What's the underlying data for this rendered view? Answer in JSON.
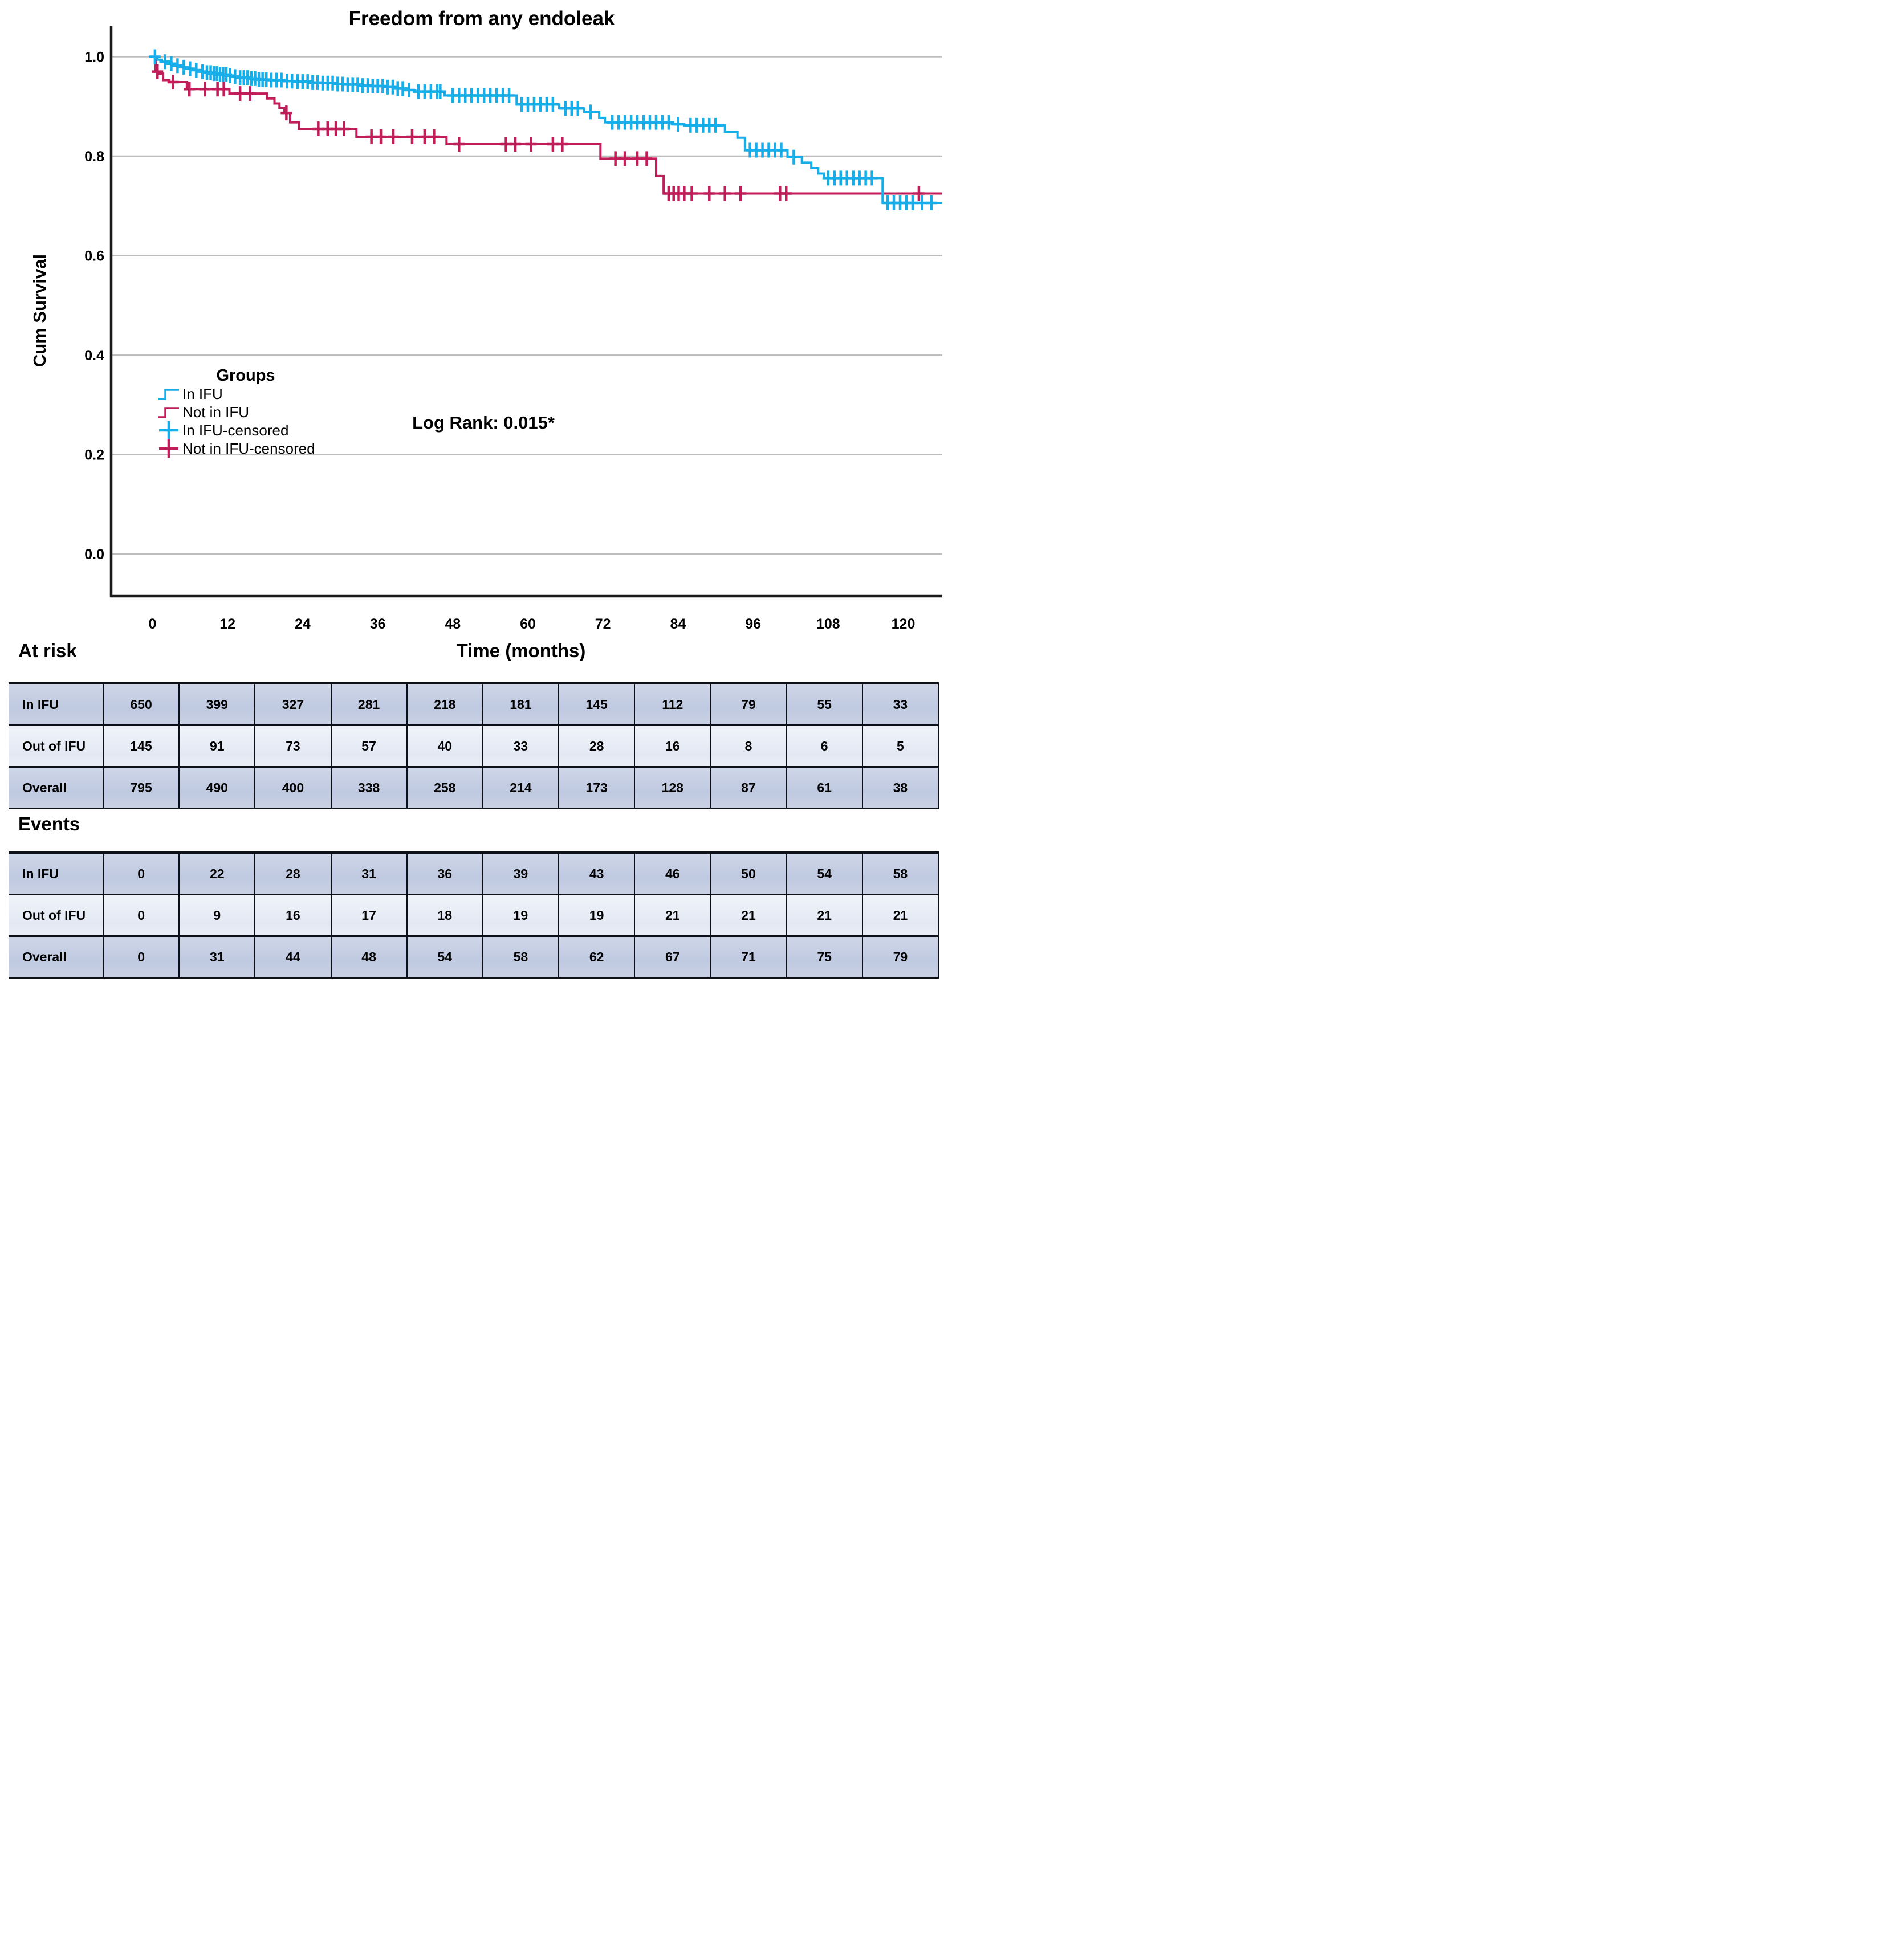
{
  "title": "Freedom from any endoleak",
  "y_axis": {
    "label": "Cum Survival",
    "ticks": [
      "1.0",
      "0.8",
      "0.6",
      "0.4",
      "0.2",
      "0.0"
    ]
  },
  "x_axis": {
    "label": "Time (months)",
    "ticks": [
      "0",
      "12",
      "24",
      "36",
      "48",
      "60",
      "72",
      "84",
      "96",
      "108",
      "120"
    ]
  },
  "annotation": "Log Rank: 0.015*",
  "legend": {
    "title": "Groups",
    "items": [
      {
        "label": "In IFU",
        "color": "#17ade8",
        "marker": "step-line"
      },
      {
        "label": "Not in IFU",
        "color": "#c01d59",
        "marker": "step-line"
      },
      {
        "label": "In IFU-censored",
        "color": "#17ade8",
        "marker": "plus"
      },
      {
        "label": "Not in IFU-censored",
        "color": "#c01d59",
        "marker": "plus"
      }
    ]
  },
  "colors": {
    "in_ifu": "#17ade8",
    "not_in_ifu": "#c01d59",
    "gridline": "#bdbdbd",
    "axis": "#1a1a1a",
    "table_row_dark": "#c5cee3",
    "table_row_light": "#e9edf6"
  },
  "chart_data": {
    "type": "line",
    "subtype": "kaplan-meier-step",
    "title": "Freedom from any endoleak",
    "xlabel": "Time (months)",
    "ylabel": "Cum Survival",
    "xlim": [
      -6.6,
      126.2
    ],
    "ylim": [
      0.0,
      1.05
    ],
    "x_ticks": [
      0,
      12,
      24,
      36,
      48,
      60,
      72,
      84,
      96,
      108,
      120
    ],
    "y_ticks": [
      1.0,
      0.8,
      0.6,
      0.4,
      0.2,
      0.0
    ],
    "grid": "horizontal",
    "legend_position": "inside-left-middle",
    "annotation": "Log Rank: 0.015*",
    "series": [
      {
        "name": "Not in IFU",
        "color": "#c01d59",
        "end_x": 126.2,
        "steps": [
          [
            0,
            1.0
          ],
          [
            0.5,
            0.97
          ],
          [
            0.9,
            0.966
          ],
          [
            1.7,
            0.953
          ],
          [
            2.7,
            0.949
          ],
          [
            5.5,
            0.935
          ],
          [
            12.3,
            0.926
          ],
          [
            18.3,
            0.916
          ],
          [
            19.5,
            0.906
          ],
          [
            20.3,
            0.897
          ],
          [
            21.1,
            0.887
          ],
          [
            22,
            0.868
          ],
          [
            23.4,
            0.855
          ],
          [
            32.6,
            0.839
          ],
          [
            47,
            0.824
          ],
          [
            71.6,
            0.795
          ],
          [
            80.5,
            0.76
          ],
          [
            81.7,
            0.725
          ]
        ],
        "censored": [
          0.8,
          3.3,
          5.9,
          8.4,
          10.4,
          11.4,
          14,
          15.6,
          21.4,
          26.5,
          28,
          29.3,
          30.6,
          35,
          36.5,
          38.5,
          41.5,
          43.5,
          45,
          49,
          56.5,
          58,
          60.5,
          64,
          65.5,
          74,
          75.5,
          77.5,
          79,
          82.5,
          83.3,
          84.1,
          85,
          86.2,
          89,
          91.5,
          94,
          100.3,
          101.3,
          122.5
        ]
      },
      {
        "name": "In IFU",
        "color": "#17ade8",
        "end_x": 126.2,
        "steps": [
          [
            0,
            1.0
          ],
          [
            0.8,
            0.994
          ],
          [
            1.5,
            0.99
          ],
          [
            2.5,
            0.986
          ],
          [
            3.5,
            0.982
          ],
          [
            4.5,
            0.979
          ],
          [
            5.5,
            0.976
          ],
          [
            6.5,
            0.973
          ],
          [
            7.5,
            0.97
          ],
          [
            8.5,
            0.968
          ],
          [
            9.5,
            0.966
          ],
          [
            10.5,
            0.964
          ],
          [
            12,
            0.962
          ],
          [
            13,
            0.96
          ],
          [
            14,
            0.958
          ],
          [
            15.5,
            0.956
          ],
          [
            17,
            0.954
          ],
          [
            18.5,
            0.953
          ],
          [
            21,
            0.951
          ],
          [
            23,
            0.95
          ],
          [
            25,
            0.948
          ],
          [
            27,
            0.947
          ],
          [
            29,
            0.945
          ],
          [
            31,
            0.944
          ],
          [
            33,
            0.942
          ],
          [
            35,
            0.941
          ],
          [
            37,
            0.939
          ],
          [
            39,
            0.936
          ],
          [
            40.5,
            0.933
          ],
          [
            42,
            0.93
          ],
          [
            46.7,
            0.922
          ],
          [
            58.2,
            0.904
          ],
          [
            65,
            0.896
          ],
          [
            69,
            0.889
          ],
          [
            71.4,
            0.877
          ],
          [
            72.3,
            0.868
          ],
          [
            83,
            0.864
          ],
          [
            85,
            0.862
          ],
          [
            91.5,
            0.849
          ],
          [
            93.5,
            0.837
          ],
          [
            94.7,
            0.812
          ],
          [
            101.5,
            0.798
          ],
          [
            103.8,
            0.787
          ],
          [
            105.3,
            0.776
          ],
          [
            106.4,
            0.765
          ],
          [
            107.3,
            0.756
          ],
          [
            116.7,
            0.706
          ]
        ],
        "censored": [
          0.4,
          2,
          3,
          4,
          5,
          6,
          7,
          8,
          8.7,
          9.3,
          9.8,
          10.3,
          10.8,
          11.3,
          11.8,
          12.4,
          13.2,
          14,
          14.6,
          15.2,
          15.8,
          16.4,
          17,
          17.6,
          18.2,
          19,
          19.8,
          20.6,
          21.5,
          22.3,
          23.2,
          24,
          24.8,
          25.6,
          26.4,
          27.2,
          28,
          28.8,
          29.6,
          30.4,
          31.2,
          32,
          32.8,
          33.6,
          34.4,
          35.2,
          36,
          36.8,
          37.6,
          38.4,
          39.2,
          40,
          41,
          42.5,
          43.5,
          44.5,
          45.5,
          46,
          48,
          49,
          50,
          51,
          52,
          53,
          54,
          55,
          56,
          57,
          59,
          60,
          61,
          62,
          63,
          64,
          66,
          67,
          68,
          70,
          73.5,
          74.5,
          75.5,
          76.5,
          77.5,
          78.5,
          79.5,
          80.5,
          81.5,
          82.5,
          84,
          86,
          87,
          88,
          89,
          90,
          95.5,
          96.5,
          97.5,
          98.5,
          99.5,
          100.5,
          102.5,
          108,
          109,
          110,
          111,
          112,
          113,
          114,
          115,
          117.5,
          118.5,
          119.5,
          120.5,
          121.5,
          123,
          124.5
        ]
      }
    ]
  },
  "tables": {
    "at_risk": {
      "heading": "At risk",
      "rows": [
        {
          "label": "In IFU",
          "values": [
            650,
            399,
            327,
            281,
            218,
            181,
            145,
            112,
            79,
            55,
            33
          ]
        },
        {
          "label": "Out of IFU",
          "values": [
            145,
            91,
            73,
            57,
            40,
            33,
            28,
            16,
            8,
            6,
            5
          ]
        },
        {
          "label": "Overall",
          "values": [
            795,
            490,
            400,
            338,
            258,
            214,
            173,
            128,
            87,
            61,
            38
          ]
        }
      ]
    },
    "events": {
      "heading": "Events",
      "rows": [
        {
          "label": "In IFU",
          "values": [
            0,
            22,
            28,
            31,
            36,
            39,
            43,
            46,
            50,
            54,
            58
          ]
        },
        {
          "label": "Out of IFU",
          "values": [
            0,
            9,
            16,
            17,
            18,
            19,
            19,
            21,
            21,
            21,
            21
          ]
        },
        {
          "label": "Overall",
          "values": [
            0,
            31,
            44,
            48,
            54,
            58,
            62,
            67,
            71,
            75,
            79
          ]
        }
      ]
    }
  }
}
